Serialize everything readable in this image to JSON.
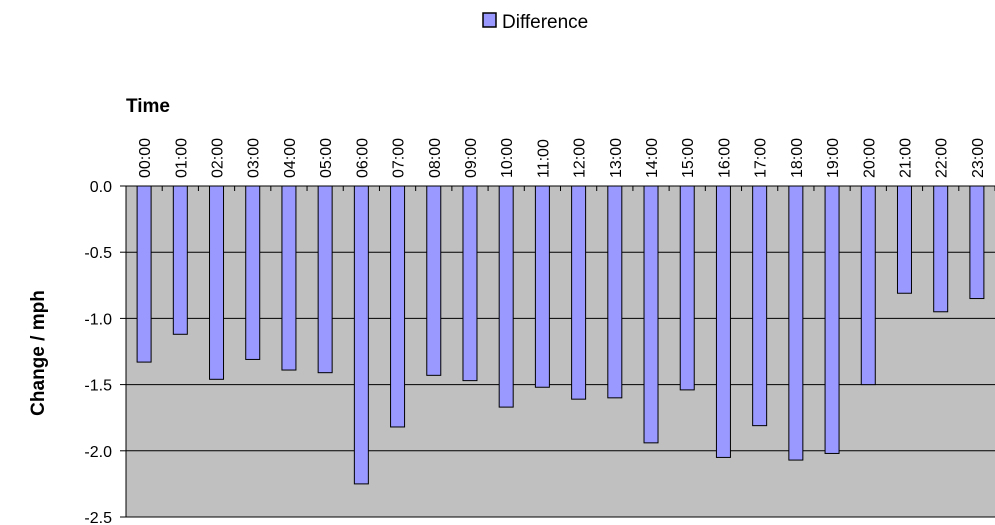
{
  "chart_data": {
    "type": "bar",
    "title": "",
    "xlabel": "Time",
    "ylabel": "Change / mph",
    "categories": [
      "00:00",
      "01:00",
      "02:00",
      "03:00",
      "04:00",
      "05:00",
      "06:00",
      "07:00",
      "08:00",
      "09:00",
      "10:00",
      "11:00",
      "12:00",
      "13:00",
      "14:00",
      "15:00",
      "16:00",
      "17:00",
      "18:00",
      "19:00",
      "20:00",
      "21:00",
      "22:00",
      "23:00"
    ],
    "series": [
      {
        "name": "Difference",
        "values": [
          -1.33,
          -1.12,
          -1.46,
          -1.31,
          -1.39,
          -1.41,
          -2.25,
          -1.82,
          -1.43,
          -1.47,
          -1.67,
          -1.52,
          -1.61,
          -1.6,
          -1.94,
          -1.54,
          -2.05,
          -1.81,
          -2.07,
          -2.02,
          -1.5,
          -0.81,
          -0.95,
          -0.85
        ]
      }
    ],
    "ylim": [
      -2.5,
      0
    ],
    "yticks": [
      "0.0",
      "-0.5",
      "-1.0",
      "-1.5",
      "-2.0",
      "-2.5"
    ],
    "ytick_values": [
      0,
      -0.5,
      -1.0,
      -1.5,
      -2.0,
      -2.5
    ],
    "x_axis_position": "top",
    "grid": true,
    "legend_position": "top-center",
    "colors": {
      "bar_fill": "#9999ff",
      "bar_stroke": "#000000",
      "plot_background": "#c0c0c0",
      "gridline": "#000000"
    }
  }
}
